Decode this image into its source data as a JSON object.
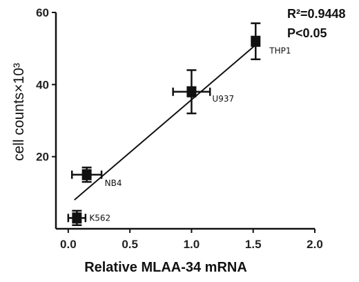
{
  "chart_data": {
    "type": "scatter",
    "xlabel": "Relative MLAA-34 mRNA",
    "ylabel": "cell counts×10³",
    "xlim": [
      -0.1,
      2.0
    ],
    "ylim": [
      0,
      60
    ],
    "x_ticks": [
      "0.0",
      "0.5",
      "1.0",
      "1.5",
      "2.0"
    ],
    "x_tick_values": [
      0.0,
      0.5,
      1.0,
      1.5,
      2.0
    ],
    "y_ticks": [
      "20",
      "40",
      "60"
    ],
    "y_tick_values": [
      20,
      40,
      60
    ],
    "points": [
      {
        "label": "K562",
        "x": 0.07,
        "y": 3,
        "x_err": 0.07,
        "y_err": 2
      },
      {
        "label": "NB4",
        "x": 0.15,
        "y": 15,
        "x_err": 0.12,
        "y_err": 2
      },
      {
        "label": "U937",
        "x": 1.0,
        "y": 38,
        "x_err": 0.15,
        "y_err": 6
      },
      {
        "label": "THP1",
        "x": 1.52,
        "y": 52,
        "x_err": 0.03,
        "y_err": 5
      }
    ],
    "regression": {
      "x": [
        0.05,
        1.52
      ],
      "y": [
        8,
        51
      ]
    },
    "stats": {
      "r2": "R²=0.9448",
      "p": "P<0.05"
    },
    "grid": false,
    "legend": "none"
  }
}
